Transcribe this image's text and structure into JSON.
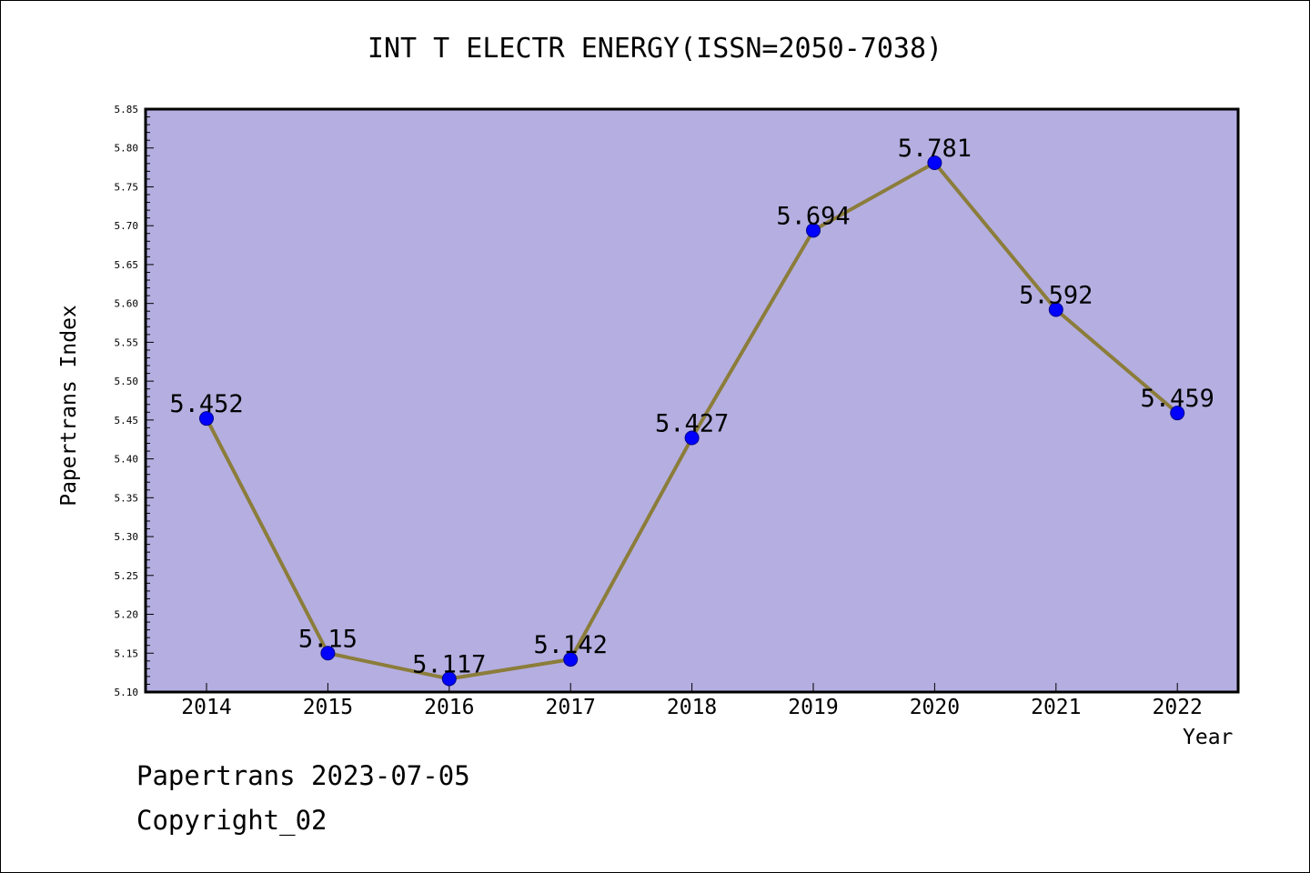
{
  "chart_data": {
    "type": "line",
    "title": "INT T ELECTR ENERGY(ISSN=2050-7038)",
    "xlabel": "Year",
    "ylabel": "Papertrans Index",
    "categories": [
      "2014",
      "2015",
      "2016",
      "2017",
      "2018",
      "2019",
      "2020",
      "2021",
      "2022"
    ],
    "values": [
      5.452,
      5.15,
      5.117,
      5.142,
      5.427,
      5.694,
      5.781,
      5.592,
      5.459
    ],
    "data_labels": [
      "5.452",
      "5.15",
      "5.117",
      "5.142",
      "5.427",
      "5.694",
      "5.781",
      "5.592",
      "5.459"
    ],
    "ylim": [
      5.1,
      5.85
    ],
    "yticks": [
      "5.10",
      "5.15",
      "5.20",
      "5.25",
      "5.30",
      "5.35",
      "5.40",
      "5.45",
      "5.50",
      "5.55",
      "5.60",
      "5.65",
      "5.70",
      "5.75",
      "5.80",
      "5.85"
    ],
    "grid": false,
    "legend": "none",
    "colors": {
      "plot_background": "#b5aee1",
      "line": "#8b7d3a",
      "marker": "#0000ff",
      "marker_edge": "#00008b"
    }
  },
  "footer": {
    "line1": "Papertrans 2023-07-05",
    "line2": "Copyright_02"
  }
}
